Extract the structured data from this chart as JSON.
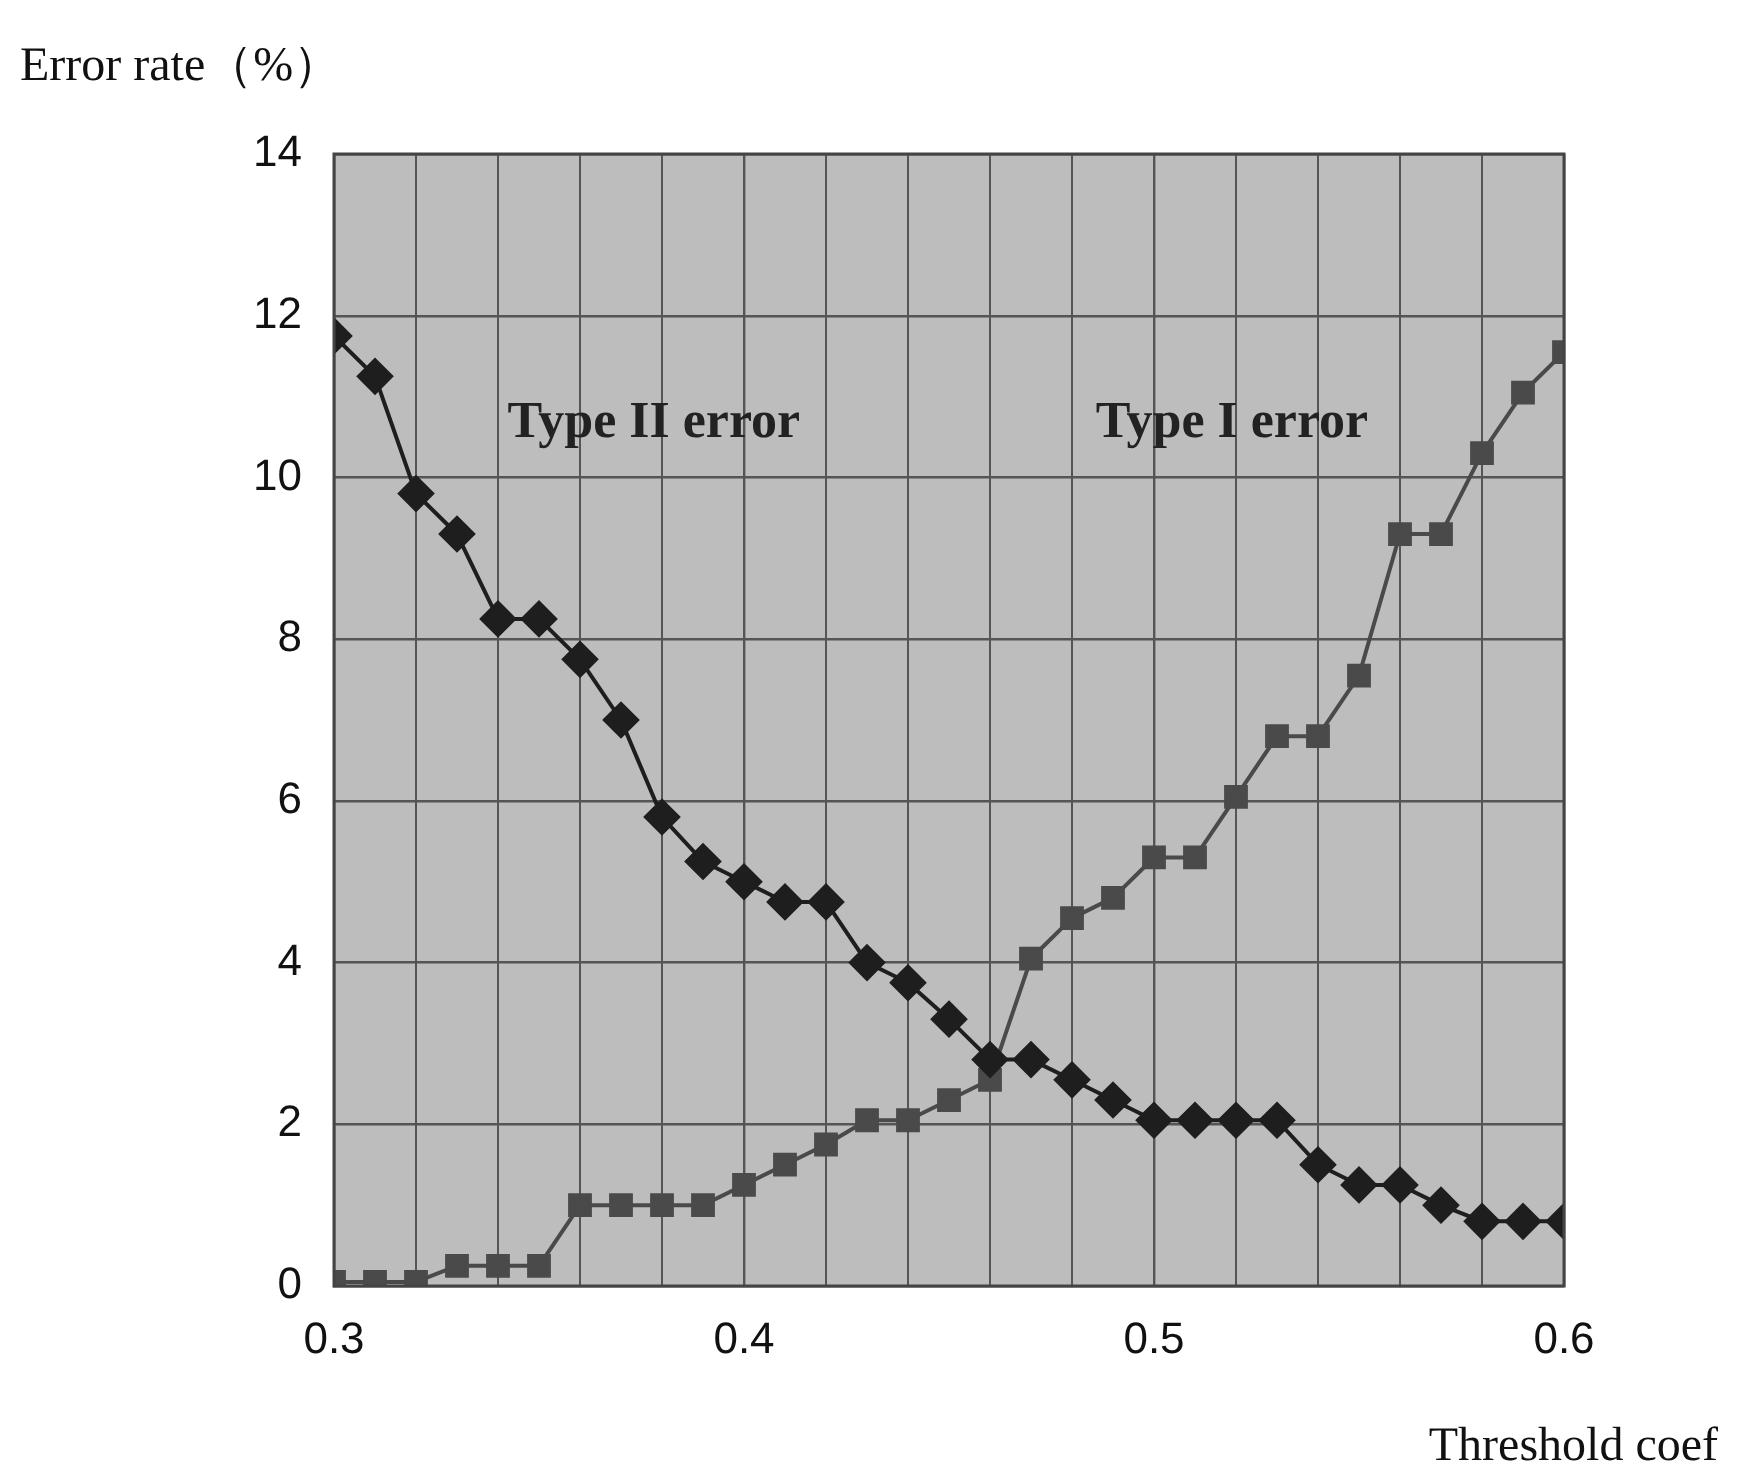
{
  "chart_data": {
    "type": "line",
    "xlabel": "Threshold coef",
    "ylabel": "Error rate（%）",
    "x": [
      0.3,
      0.31,
      0.32,
      0.33,
      0.34,
      0.35,
      0.36,
      0.37,
      0.38,
      0.39,
      0.4,
      0.41,
      0.42,
      0.43,
      0.44,
      0.45,
      0.46,
      0.47,
      0.48,
      0.49,
      0.5,
      0.51,
      0.52,
      0.53,
      0.54,
      0.55,
      0.56,
      0.57,
      0.58,
      0.59,
      0.6
    ],
    "series": [
      {
        "name": "Type II error",
        "color": "#1e1e1e",
        "marker": "diamond",
        "values": [
          11.75,
          11.25,
          9.8,
          9.3,
          8.25,
          8.25,
          7.75,
          7.0,
          5.8,
          5.25,
          5.0,
          4.75,
          4.75,
          4.0,
          3.75,
          3.3,
          2.8,
          2.8,
          2.55,
          2.3,
          2.05,
          2.05,
          2.05,
          2.05,
          1.5,
          1.25,
          1.25,
          1.0,
          0.8,
          0.8,
          0.8
        ]
      },
      {
        "name": "Type I error",
        "color": "#4a4a4a",
        "marker": "square",
        "values": [
          0.05,
          0.05,
          0.05,
          0.25,
          0.25,
          0.25,
          1.0,
          1.0,
          1.0,
          1.0,
          1.25,
          1.5,
          1.75,
          2.05,
          2.05,
          2.3,
          2.55,
          4.05,
          4.55,
          4.8,
          5.3,
          5.3,
          6.05,
          6.8,
          6.8,
          7.55,
          9.3,
          9.3,
          10.3,
          11.05,
          11.55
        ]
      }
    ],
    "xlim": [
      0.3,
      0.6
    ],
    "xticks": [
      {
        "value": 0.3,
        "label": "0.3"
      },
      {
        "value": 0.32,
        "label": null
      },
      {
        "value": 0.34,
        "label": null
      },
      {
        "value": 0.36,
        "label": null
      },
      {
        "value": 0.38,
        "label": null
      },
      {
        "value": 0.4,
        "label": "0.4"
      },
      {
        "value": 0.42,
        "label": null
      },
      {
        "value": 0.44,
        "label": null
      },
      {
        "value": 0.46,
        "label": null
      },
      {
        "value": 0.48,
        "label": null
      },
      {
        "value": 0.5,
        "label": "0.5"
      },
      {
        "value": 0.52,
        "label": null
      },
      {
        "value": 0.54,
        "label": null
      },
      {
        "value": 0.56,
        "label": null
      },
      {
        "value": 0.58,
        "label": null
      },
      {
        "value": 0.6,
        "label": "0.6"
      }
    ],
    "ylim": [
      0,
      14
    ],
    "yticks": [
      0,
      2,
      4,
      6,
      8,
      10,
      12,
      14
    ],
    "grid": true,
    "legend": false,
    "line_style": "solid"
  }
}
